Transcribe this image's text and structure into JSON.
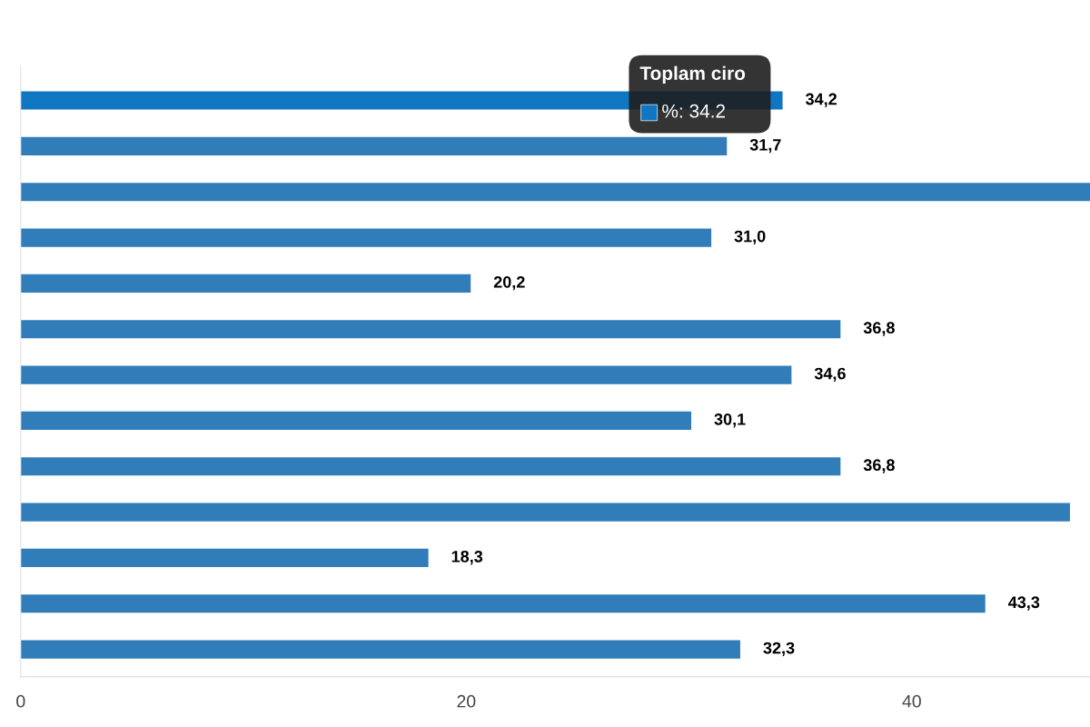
{
  "chart_data": {
    "type": "bar",
    "orientation": "horizontal",
    "categories": [
      null,
      null,
      null,
      null,
      null,
      null,
      null,
      null,
      null,
      null,
      null,
      null,
      null
    ],
    "values": [
      34.2,
      31.7,
      48,
      31.0,
      20.2,
      36.8,
      34.6,
      30.1,
      36.8,
      47.1,
      18.3,
      43.3,
      32.3
    ],
    "colors": [
      "#0f76c2",
      "#317dba",
      "#317dba",
      "#317dba",
      "#317dba",
      "#317dba",
      "#317dba",
      "#317dba",
      "#317dba",
      "#317dba",
      "#317dba",
      "#317dba",
      "#317dba"
    ],
    "value_labels": [
      "34,2",
      "31,7",
      null,
      "31,0",
      "20,2",
      "36,8",
      "34,6",
      "30,1",
      "36,8",
      null,
      "18,3",
      "43,3",
      "32,3"
    ],
    "xlim": [
      0,
      48
    ],
    "xticks": [
      0,
      20,
      40
    ],
    "grid": false,
    "annotations": [
      "Toplam ciro",
      "%: 34.2"
    ]
  }
}
